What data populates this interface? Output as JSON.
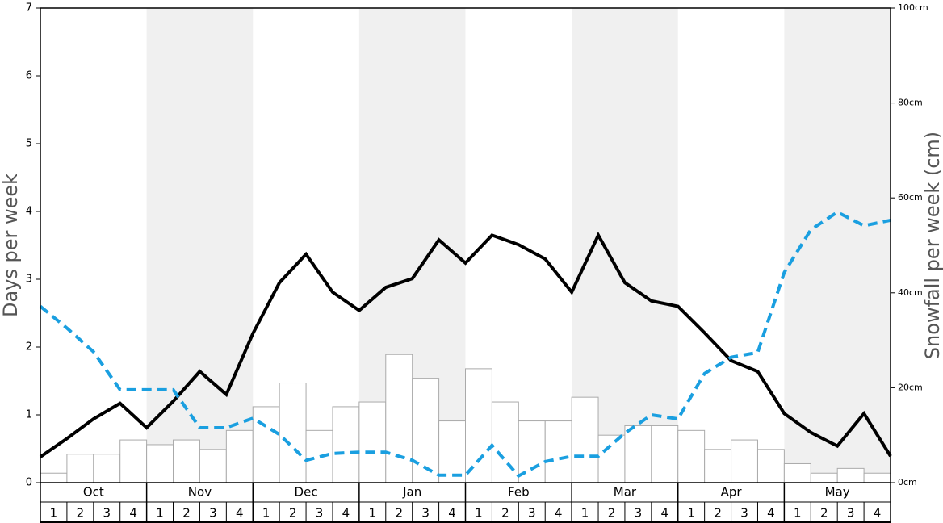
{
  "chart_data": {
    "type": "bar",
    "y_label": "Days per week",
    "y2_label": "Snowfall per week (cm)",
    "months": [
      "Oct",
      "Nov",
      "Dec",
      "Jan",
      "Feb",
      "Mar",
      "Apr",
      "May"
    ],
    "weeks": [
      "1",
      "2",
      "3",
      "4"
    ],
    "ylim": [
      0,
      7
    ],
    "yticks": [
      0,
      1,
      2,
      3,
      4,
      5,
      6,
      7
    ],
    "y2lim": [
      0,
      100
    ],
    "y2ticks": [
      {
        "value": 0,
        "label": "0cm"
      },
      {
        "value": 20,
        "label": "20cm"
      },
      {
        "value": 40,
        "label": "40cm"
      },
      {
        "value": 60,
        "label": "60cm"
      },
      {
        "value": 80,
        "label": "80cm"
      },
      {
        "value": 100,
        "label": "100cm"
      }
    ],
    "shade_color": "#f0f0f0",
    "series": [
      {
        "type": "bar",
        "axis": "y2",
        "color": "#ffffff",
        "edge_color": "#aaaaaa",
        "values": [
          2,
          6,
          6,
          9,
          8,
          9,
          7,
          11,
          16,
          21,
          11,
          16,
          17,
          27,
          22,
          13,
          24,
          17,
          13,
          13,
          18,
          10,
          12,
          12,
          11,
          7,
          9,
          7,
          4,
          2,
          3,
          2
        ]
      },
      {
        "type": "line",
        "color": "#000000",
        "dashed": false,
        "values": [
          0.38,
          0.65,
          0.94,
          1.17,
          0.81,
          1.2,
          1.64,
          1.3,
          2.2,
          2.95,
          3.37,
          2.81,
          2.54,
          2.88,
          3.01,
          3.58,
          3.24,
          3.65,
          3.51,
          3.3,
          2.81,
          3.65,
          2.95,
          2.68,
          2.6,
          2.21,
          1.8,
          1.64,
          1.02,
          0.74,
          0.54,
          1.02,
          0.39
        ]
      },
      {
        "type": "line",
        "color": "#1a9fe0",
        "dashed": true,
        "values": [
          2.6,
          2.28,
          1.93,
          1.37,
          1.37,
          1.37,
          0.81,
          0.81,
          0.95,
          0.71,
          0.33,
          0.43,
          0.45,
          0.45,
          0.33,
          0.11,
          0.11,
          0.55,
          0.1,
          0.31,
          0.39,
          0.39,
          0.73,
          1.0,
          0.94,
          1.61,
          1.85,
          1.92,
          3.1,
          3.73,
          3.99,
          3.79,
          3.87
        ]
      }
    ]
  }
}
